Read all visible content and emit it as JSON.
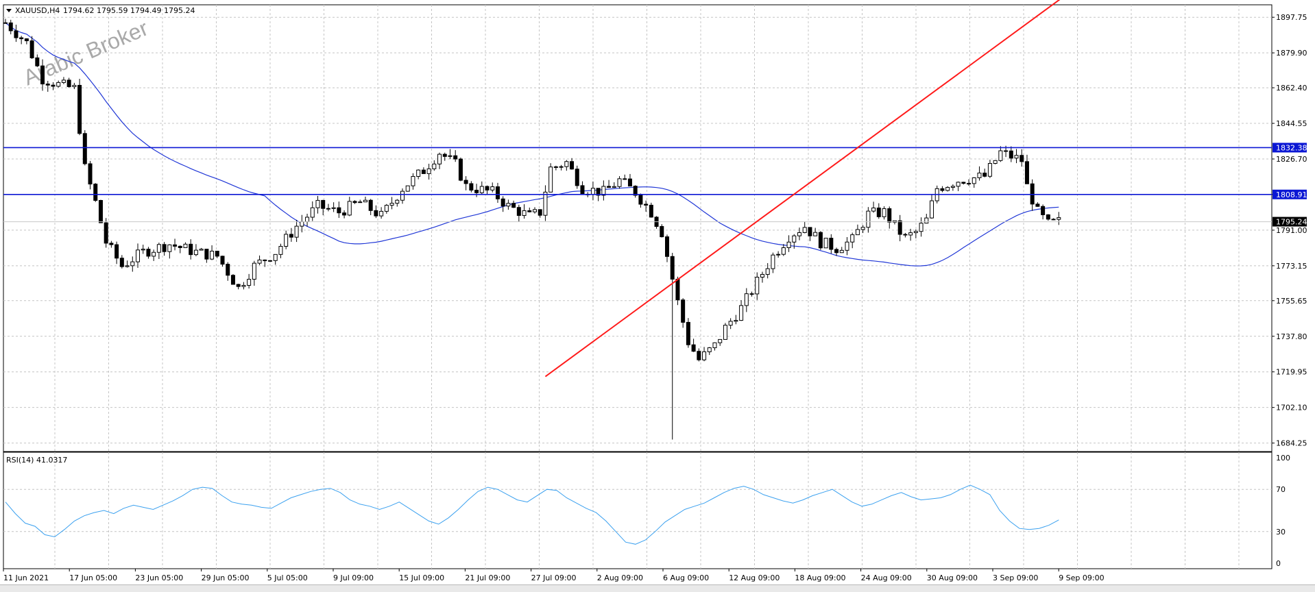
{
  "header": {
    "symbol_label": "XAUUSD,H4",
    "ohlc": "1794.62 1795.59 1794.49 1795.24"
  },
  "watermark": "Arabic Broker",
  "rsi": {
    "label": "RSI(14) 41.0317",
    "levels": [
      "100",
      "70",
      "30",
      "0"
    ]
  },
  "colors": {
    "candle": "#000000",
    "ma": "#1f36d6",
    "hline": "#0b17d4",
    "trendline": "#ff1a1a",
    "rsi_line": "#3aa0ef",
    "grid": "#c4c4c4",
    "axis": "#000000",
    "badge_bg": "#0b17d4",
    "badge_text": "#ffffff",
    "price_badge_bg": "#000000"
  },
  "chart_data": {
    "type": "candlestick",
    "timeframe": "H4",
    "ylim": [
      1680,
      1904
    ],
    "y_ticks": [
      "1897.75",
      "1879.90",
      "1862.40",
      "1844.55",
      "1826.70",
      "1808.91",
      "1791.00",
      "1773.15",
      "1755.65",
      "1737.80",
      "1719.95",
      "1702.10",
      "1684.25"
    ],
    "x_labels": [
      "11 Jun 2021",
      "17 Jun 05:00",
      "23 Jun 05:00",
      "29 Jun 05:00",
      "5 Jul 05:00",
      "9 Jul 09:00",
      "15 Jul 09:00",
      "21 Jul 09:00",
      "27 Jul 09:00",
      "2 Aug 09:00",
      "6 Aug 09:00",
      "12 Aug 09:00",
      "18 Aug 09:00",
      "24 Aug 09:00",
      "30 Aug 09:00",
      "3 Sep 09:00",
      "9 Sep 09:00"
    ],
    "horizontal_lines": [
      {
        "label": "1832.38",
        "value": 1832.38
      },
      {
        "label": "1808.91",
        "value": 1808.91
      }
    ],
    "current_price": {
      "label": "1795.24",
      "value": 1795.24
    },
    "trendline": {
      "x": [
        102,
        190
      ],
      "y": [
        1717.6,
        1888.8
      ],
      "unit_x": "candle index"
    },
    "price_path": [
      [
        0,
        1895
      ],
      [
        4,
        1885
      ],
      [
        7,
        1867
      ],
      [
        10,
        1864
      ],
      [
        13,
        1862
      ],
      [
        15,
        1822
      ],
      [
        17,
        1805
      ],
      [
        19,
        1785
      ],
      [
        22,
        1773
      ],
      [
        26,
        1780
      ],
      [
        31,
        1784
      ],
      [
        36,
        1780
      ],
      [
        40,
        1778
      ],
      [
        43,
        1766
      ],
      [
        44,
        1762
      ],
      [
        47,
        1773
      ],
      [
        51,
        1780
      ],
      [
        55,
        1793
      ],
      [
        59,
        1803
      ],
      [
        63,
        1800
      ],
      [
        67,
        1805
      ],
      [
        71,
        1798
      ],
      [
        75,
        1812
      ],
      [
        79,
        1821
      ],
      [
        82,
        1830
      ],
      [
        85,
        1824
      ],
      [
        87,
        1813
      ],
      [
        92,
        1810
      ],
      [
        95,
        1803
      ],
      [
        99,
        1798
      ],
      [
        101,
        1800
      ],
      [
        103,
        1822
      ],
      [
        106,
        1825
      ],
      [
        109,
        1812
      ],
      [
        113,
        1810
      ],
      [
        116,
        1816
      ],
      [
        119,
        1810
      ],
      [
        122,
        1800
      ],
      [
        124,
        1790
      ],
      [
        127,
        1755
      ],
      [
        129,
        1735
      ],
      [
        131,
        1726
      ],
      [
        134,
        1733
      ],
      [
        136,
        1742
      ],
      [
        139,
        1752
      ],
      [
        142,
        1765
      ],
      [
        145,
        1778
      ],
      [
        148,
        1788
      ],
      [
        151,
        1793
      ],
      [
        154,
        1785
      ],
      [
        157,
        1782
      ],
      [
        160,
        1786
      ],
      [
        163,
        1799
      ],
      [
        166,
        1800
      ],
      [
        168,
        1793
      ],
      [
        170,
        1787
      ],
      [
        172,
        1790
      ],
      [
        174,
        1796
      ],
      [
        176,
        1812
      ],
      [
        180,
        1816
      ],
      [
        185,
        1818
      ],
      [
        188,
        1830
      ],
      [
        192,
        1826
      ],
      [
        193,
        1813
      ],
      [
        195,
        1800
      ],
      [
        197,
        1794
      ],
      [
        199,
        1795.24
      ]
    ],
    "ma_period_label": "",
    "rsi_series": {
      "name": "RSI(14)",
      "ylim": [
        0,
        100
      ],
      "levels": [
        70,
        30
      ],
      "values": [
        58,
        47,
        38,
        35,
        27,
        25,
        32,
        40,
        45,
        48,
        50,
        47,
        52,
        55,
        53,
        51,
        55,
        59,
        64,
        70,
        72,
        71,
        64,
        58,
        56,
        55,
        53,
        52,
        57,
        62,
        65,
        68,
        70,
        71,
        67,
        60,
        56,
        54,
        51,
        54,
        58,
        52,
        46,
        40,
        37,
        43,
        51,
        60,
        68,
        72,
        70,
        65,
        60,
        58,
        64,
        70,
        69,
        62,
        57,
        52,
        48,
        40,
        30,
        20,
        18,
        22,
        30,
        39,
        45,
        51,
        54,
        57,
        62,
        67,
        71,
        73,
        70,
        65,
        62,
        59,
        57,
        60,
        64,
        67,
        70,
        64,
        58,
        54,
        56,
        60,
        64,
        67,
        63,
        60,
        61,
        62,
        65,
        70,
        74,
        70,
        65,
        50,
        40,
        33,
        32,
        33,
        36,
        41.03
      ]
    }
  }
}
